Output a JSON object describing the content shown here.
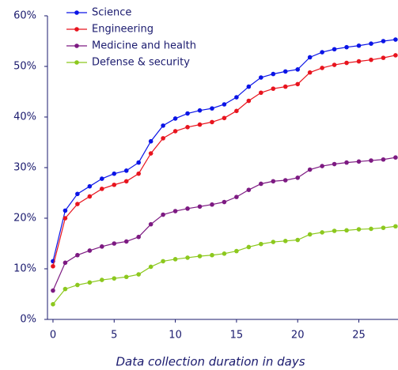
{
  "chart_data": {
    "type": "line",
    "x_label": "Data collection duration in days",
    "x": [
      0,
      1,
      2,
      3,
      4,
      5,
      6,
      7,
      8,
      9,
      10,
      11,
      12,
      13,
      14,
      15,
      16,
      17,
      18,
      19,
      20,
      21,
      22,
      23,
      24,
      25,
      26,
      27,
      28
    ],
    "xlim": [
      -0.45,
      28.2
    ],
    "xticks": [
      0,
      5,
      10,
      15,
      20,
      25
    ],
    "ylim": [
      0,
      60
    ],
    "yticks": [
      {
        "value": 0,
        "label": "0%"
      },
      {
        "value": 10,
        "label": "10%"
      },
      {
        "value": 20,
        "label": "20%"
      },
      {
        "value": 30,
        "label": "30%"
      },
      {
        "value": 40,
        "label": "40%"
      },
      {
        "value": 50,
        "label": "50%"
      },
      {
        "value": 60,
        "label": "60%"
      }
    ],
    "legend": "top-left",
    "series": [
      {
        "name": "Science",
        "color": "#0a14e6",
        "values": [
          11.5,
          21.5,
          24.8,
          26.3,
          27.8,
          28.8,
          29.4,
          31,
          35.2,
          38.3,
          39.7,
          40.7,
          41.3,
          41.7,
          42.5,
          43.9,
          46,
          47.8,
          48.5,
          49,
          49.4,
          51.8,
          52.8,
          53.4,
          53.8,
          54.1,
          54.5,
          55,
          55.3
        ]
      },
      {
        "name": "Engineering",
        "color": "#e8141e",
        "values": [
          10.5,
          20,
          22.8,
          24.3,
          25.8,
          26.6,
          27.3,
          28.8,
          32.8,
          35.8,
          37.2,
          38,
          38.5,
          39,
          39.8,
          41.2,
          43.2,
          44.8,
          45.6,
          46,
          46.5,
          48.8,
          49.7,
          50.3,
          50.7,
          51,
          51.3,
          51.7,
          52.2
        ]
      },
      {
        "name": "Medicine and health",
        "color": "#7d1a82",
        "values": [
          5.7,
          11.2,
          12.7,
          13.6,
          14.4,
          15,
          15.4,
          16.3,
          18.8,
          20.7,
          21.4,
          21.9,
          22.3,
          22.7,
          23.2,
          24.2,
          25.6,
          26.8,
          27.3,
          27.5,
          28,
          29.6,
          30.3,
          30.7,
          31,
          31.2,
          31.4,
          31.6,
          32
        ]
      },
      {
        "name": "Defense & security",
        "color": "#8cc81e",
        "values": [
          3,
          6,
          6.8,
          7.3,
          7.8,
          8.1,
          8.4,
          8.9,
          10.4,
          11.5,
          11.9,
          12.2,
          12.5,
          12.7,
          13,
          13.5,
          14.3,
          14.9,
          15.3,
          15.5,
          15.7,
          16.8,
          17.2,
          17.5,
          17.6,
          17.8,
          17.9,
          18.1,
          18.4
        ]
      }
    ]
  }
}
